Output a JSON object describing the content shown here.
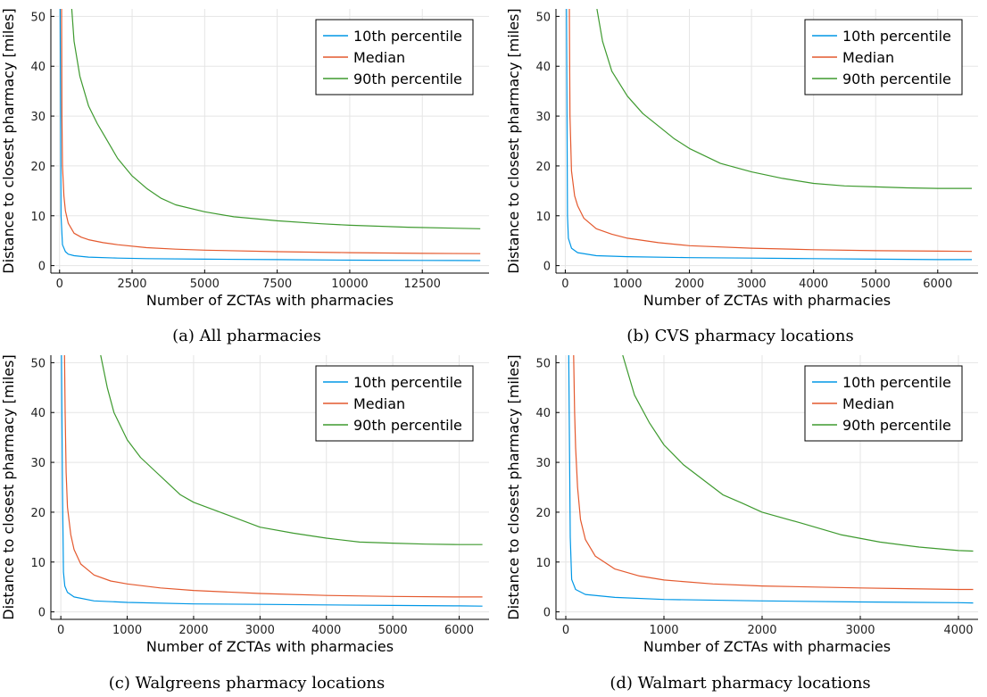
{
  "colors": {
    "p10": "#0097e6",
    "median": "#e4592e",
    "p90": "#3e9a2f",
    "grid": "#e5e5e5"
  },
  "chart_data": [
    {
      "type": "line",
      "caption": "(a) All pharmacies",
      "xlabel": "Number of ZCTAs with pharmacies",
      "ylabel": "Distance to closest pharmacy [miles]",
      "xlim": [
        -300,
        14800
      ],
      "ylim": [
        -1.5,
        51.5
      ],
      "xticks": [
        0,
        2500,
        5000,
        7500,
        10000,
        12500
      ],
      "yticks": [
        0,
        10,
        20,
        30,
        40,
        50
      ],
      "grid": true,
      "legend": "top-right",
      "series": [
        {
          "name": "10th percentile",
          "color_key": "p10",
          "x": [
            20,
            50,
            100,
            200,
            300,
            500,
            1000,
            2000,
            3000,
            5000,
            7500,
            10000,
            12500,
            14500
          ],
          "y": [
            51.5,
            10,
            4.2,
            2.8,
            2.3,
            2.0,
            1.7,
            1.5,
            1.4,
            1.3,
            1.2,
            1.1,
            1.05,
            1.0
          ]
        },
        {
          "name": "Median",
          "color_key": "median",
          "x": [
            70,
            80,
            100,
            150,
            200,
            300,
            500,
            750,
            1000,
            1500,
            2000,
            3000,
            4000,
            5000,
            7500,
            10000,
            12500,
            14500
          ],
          "y": [
            51.5,
            30,
            20,
            14,
            11,
            8.5,
            6.5,
            5.7,
            5.2,
            4.6,
            4.2,
            3.6,
            3.3,
            3.1,
            2.8,
            2.6,
            2.45,
            2.4
          ]
        },
        {
          "name": "90th percentile",
          "color_key": "p90",
          "x": [
            420,
            500,
            700,
            1000,
            1300,
            1500,
            2000,
            2500,
            3000,
            3500,
            4000,
            5000,
            6000,
            7500,
            9000,
            10000,
            12000,
            14500
          ],
          "y": [
            51.5,
            45,
            38,
            32,
            28.5,
            26.5,
            21.5,
            18,
            15.5,
            13.5,
            12.2,
            10.8,
            9.8,
            9.0,
            8.4,
            8.1,
            7.7,
            7.4
          ]
        }
      ]
    },
    {
      "type": "line",
      "caption": "(b) CVS pharmacy locations",
      "xlabel": "Number of ZCTAs with pharmacies",
      "ylabel": "Distance to closest pharmacy [miles]",
      "xlim": [
        -150,
        6650
      ],
      "ylim": [
        -1.5,
        51.5
      ],
      "xticks": [
        0,
        1000,
        2000,
        3000,
        4000,
        5000,
        6000
      ],
      "yticks": [
        0,
        10,
        20,
        30,
        40,
        50
      ],
      "grid": true,
      "legend": "top-right",
      "series": [
        {
          "name": "10th percentile",
          "color_key": "p10",
          "x": [
            20,
            35,
            50,
            100,
            200,
            500,
            1000,
            2000,
            3000,
            4000,
            5000,
            6000,
            6550
          ],
          "y": [
            51.5,
            10,
            5.5,
            3.5,
            2.6,
            2.0,
            1.8,
            1.6,
            1.5,
            1.4,
            1.3,
            1.2,
            1.2
          ]
        },
        {
          "name": "Median",
          "color_key": "median",
          "x": [
            65,
            75,
            100,
            150,
            200,
            300,
            500,
            750,
            1000,
            1500,
            2000,
            3000,
            4000,
            5000,
            6000,
            6550
          ],
          "y": [
            51.5,
            30,
            19,
            14,
            12,
            9.5,
            7.4,
            6.3,
            5.5,
            4.6,
            4.0,
            3.5,
            3.2,
            3.0,
            2.9,
            2.85
          ]
        },
        {
          "name": "90th percentile",
          "color_key": "p90",
          "x": [
            510,
            600,
            750,
            1000,
            1250,
            1500,
            1750,
            2000,
            2500,
            3000,
            3500,
            4000,
            4500,
            5000,
            5500,
            6000,
            6550
          ],
          "y": [
            51.5,
            45,
            39,
            34,
            30.5,
            28,
            25.5,
            23.5,
            20.5,
            18.8,
            17.5,
            16.5,
            16,
            15.8,
            15.6,
            15.5,
            15.5
          ]
        }
      ]
    },
    {
      "type": "line",
      "caption": "(c) Walgreens pharmacy locations",
      "xlabel": "Number of ZCTAs with pharmacies",
      "ylabel": "Distance to closest pharmacy [miles]",
      "xlim": [
        -150,
        6450
      ],
      "ylim": [
        -1.5,
        51.5
      ],
      "xticks": [
        0,
        1000,
        2000,
        3000,
        4000,
        5000,
        6000
      ],
      "yticks": [
        0,
        10,
        20,
        30,
        40,
        50
      ],
      "grid": true,
      "legend": "top-right",
      "series": [
        {
          "name": "10th percentile",
          "color_key": "p10",
          "x": [
            10,
            25,
            40,
            60,
            100,
            200,
            500,
            1000,
            2000,
            3000,
            4000,
            5000,
            6000,
            6350
          ],
          "y": [
            51.5,
            25,
            8,
            5.2,
            3.9,
            3.0,
            2.2,
            1.9,
            1.6,
            1.5,
            1.4,
            1.3,
            1.2,
            1.15
          ]
        },
        {
          "name": "Median",
          "color_key": "median",
          "x": [
            55,
            65,
            80,
            100,
            150,
            200,
            300,
            500,
            750,
            1000,
            1500,
            2000,
            3000,
            4000,
            5000,
            6000,
            6350
          ],
          "y": [
            51.5,
            40,
            28,
            21,
            15.5,
            12.5,
            9.6,
            7.4,
            6.2,
            5.6,
            4.8,
            4.3,
            3.7,
            3.3,
            3.1,
            3.0,
            3.0
          ]
        },
        {
          "name": "90th percentile",
          "color_key": "p90",
          "x": [
            600,
            700,
            800,
            1000,
            1200,
            1400,
            1600,
            1800,
            2000,
            2500,
            3000,
            3500,
            4000,
            4500,
            5000,
            5500,
            6000,
            6350
          ],
          "y": [
            51.5,
            45,
            40,
            34.5,
            31,
            28.5,
            26,
            23.5,
            22,
            19.5,
            17,
            15.8,
            14.8,
            14.0,
            13.8,
            13.6,
            13.5,
            13.5
          ]
        }
      ]
    },
    {
      "type": "line",
      "caption": "(d) Walmart pharmacy locations",
      "xlabel": "Number of ZCTAs with pharmacies",
      "ylabel": "Distance to closest pharmacy [miles]",
      "xlim": [
        -100,
        4200
      ],
      "ylim": [
        -1.5,
        51.5
      ],
      "xticks": [
        0,
        1000,
        2000,
        3000,
        4000
      ],
      "yticks": [
        0,
        10,
        20,
        30,
        40,
        50
      ],
      "grid": true,
      "legend": "top-right",
      "series": [
        {
          "name": "10th percentile",
          "color_key": "p10",
          "x": [
            30,
            45,
            60,
            100,
            200,
            500,
            1000,
            2000,
            3000,
            4000,
            4150
          ],
          "y": [
            51.5,
            15,
            6.5,
            4.5,
            3.5,
            2.9,
            2.5,
            2.2,
            2.0,
            1.85,
            1.8
          ]
        },
        {
          "name": "Median",
          "color_key": "median",
          "x": [
            80,
            90,
            100,
            120,
            150,
            200,
            300,
            500,
            750,
            1000,
            1500,
            2000,
            3000,
            4000,
            4150
          ],
          "y": [
            51.5,
            40,
            33,
            25,
            18.5,
            14.5,
            11.2,
            8.6,
            7.2,
            6.4,
            5.6,
            5.2,
            4.8,
            4.5,
            4.5
          ]
        },
        {
          "name": "90th percentile",
          "color_key": "p90",
          "x": [
            580,
            700,
            850,
            1000,
            1200,
            1400,
            1600,
            1800,
            2000,
            2400,
            2800,
            3200,
            3600,
            4000,
            4150
          ],
          "y": [
            51.5,
            43.5,
            38,
            33.5,
            29.5,
            26.5,
            23.5,
            21.8,
            20,
            17.8,
            15.5,
            14,
            13,
            12.3,
            12.2
          ]
        }
      ]
    }
  ]
}
